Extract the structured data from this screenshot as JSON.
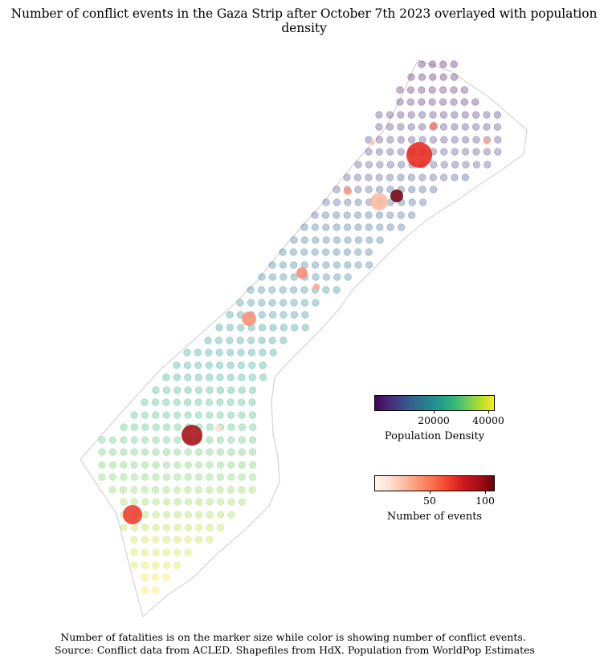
{
  "title": "Number of conflict events in the Gaza Strip after October 7th 2023 overlayed with population density",
  "legends": {
    "population": {
      "label": "Population Density",
      "ticks": [
        "20000",
        "40000"
      ],
      "colormap": [
        "#440154",
        "#3e4989",
        "#26828e",
        "#35b779",
        "#fde725"
      ]
    },
    "events": {
      "label": "Number of events",
      "ticks": [
        "50",
        "100"
      ],
      "colormap": [
        "#fff5f0",
        "#fc9272",
        "#ef3b2c",
        "#67000d"
      ]
    }
  },
  "footnote": {
    "line1": "Number of fatalities is on the marker size while color is showing number of conflict events.",
    "line2": " Source: Conflict data from ACLED. Shapefiles from HdX. Population from WorldPop Estimates"
  }
}
